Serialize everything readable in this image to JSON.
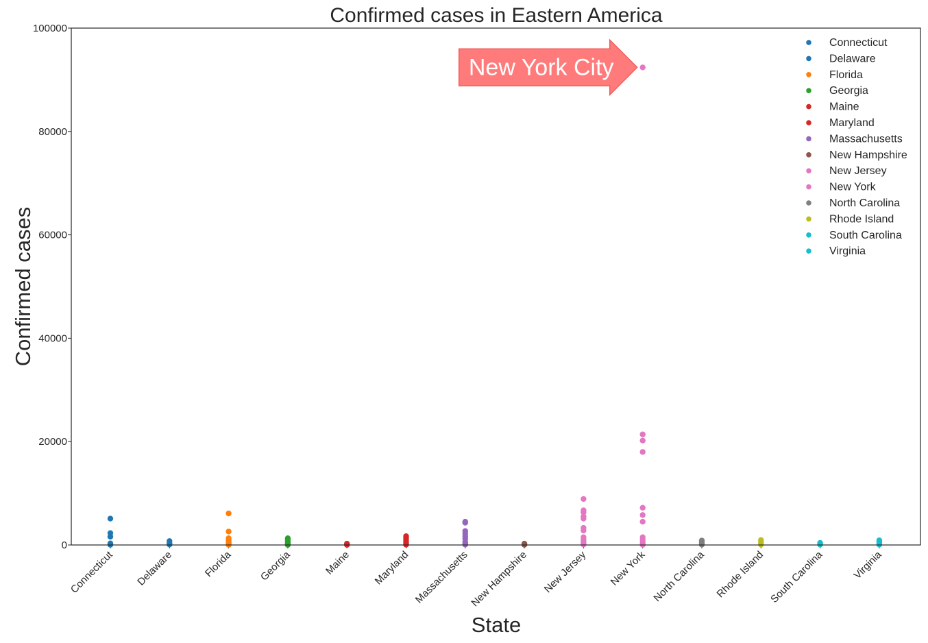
{
  "chart_data": {
    "type": "scatter",
    "title": "Confirmed cases in Eastern America",
    "xlabel": "State",
    "ylabel": "Confirmed cases",
    "ylim": [
      0,
      100000
    ],
    "yticks": [
      0,
      20000,
      40000,
      60000,
      80000,
      100000
    ],
    "ytick_labels": [
      "0",
      "20000",
      "40000",
      "60000",
      "80000",
      "100000"
    ],
    "grid": false,
    "legend_position": "top-right",
    "categories": [
      "Connecticut",
      "Delaware",
      "Florida",
      "Georgia",
      "Maine",
      "Maryland",
      "Massachusetts",
      "New Hampshire",
      "New Jersey",
      "New York",
      "North Carolina",
      "Rhode Island",
      "South Carolina",
      "Virginia"
    ],
    "series": [
      {
        "name": "Connecticut",
        "x": "Connecticut",
        "color": "#1f77b4",
        "values": [
          5100,
          2300,
          1600,
          300,
          150,
          50
        ]
      },
      {
        "name": "Delaware",
        "x": "Delaware",
        "color": "#1f77b4",
        "values": [
          750,
          300,
          100
        ]
      },
      {
        "name": "Florida",
        "x": "Florida",
        "color": "#ff7f0e",
        "values": [
          6100,
          2600,
          1300,
          900,
          500,
          250,
          100,
          30
        ]
      },
      {
        "name": "Georgia",
        "x": "Georgia",
        "color": "#2ca02c",
        "values": [
          1300,
          1000,
          700,
          400,
          200,
          80,
          20
        ]
      },
      {
        "name": "Maine",
        "x": "Maine",
        "color": "#d62728",
        "values": [
          250,
          100,
          30
        ]
      },
      {
        "name": "Maryland",
        "x": "Maryland",
        "color": "#d62728",
        "values": [
          1700,
          1400,
          1000,
          700,
          400,
          200,
          60
        ]
      },
      {
        "name": "Massachusetts",
        "x": "Massachusetts",
        "color": "#9467bd",
        "values": [
          4500,
          4300,
          2700,
          2200,
          1700,
          1200,
          600,
          300,
          80
        ]
      },
      {
        "name": "New Hampshire",
        "x": "New Hampshire",
        "color": "#8c564b",
        "values": [
          250,
          120,
          40
        ]
      },
      {
        "name": "New Jersey",
        "x": "New Jersey",
        "color": "#e377c2",
        "values": [
          8900,
          6700,
          6300,
          5500,
          5100,
          3300,
          2800,
          1500,
          1000,
          600,
          300,
          100
        ]
      },
      {
        "name": "New York",
        "x": "New York",
        "color": "#e377c2",
        "values": [
          92400,
          21400,
          20200,
          18000,
          7200,
          5800,
          4500,
          1500,
          1000,
          500,
          200,
          50
        ]
      },
      {
        "name": "North Carolina",
        "x": "North Carolina",
        "color": "#7f7f7f",
        "values": [
          850,
          500,
          250,
          80
        ]
      },
      {
        "name": "Rhode Island",
        "x": "Rhode Island",
        "color": "#bcbd22",
        "values": [
          950,
          650,
          300,
          80
        ]
      },
      {
        "name": "South Carolina",
        "x": "South Carolina",
        "color": "#17becf",
        "values": [
          400,
          250,
          80
        ]
      },
      {
        "name": "Virginia",
        "x": "Virginia",
        "color": "#17becf",
        "values": [
          900,
          600,
          300,
          80
        ]
      }
    ],
    "annotation": {
      "text": "New York City",
      "target_category": "New York",
      "target_value": 92400,
      "fill_color": "#ff7b7b",
      "edge_color": "#f25f5c"
    }
  }
}
